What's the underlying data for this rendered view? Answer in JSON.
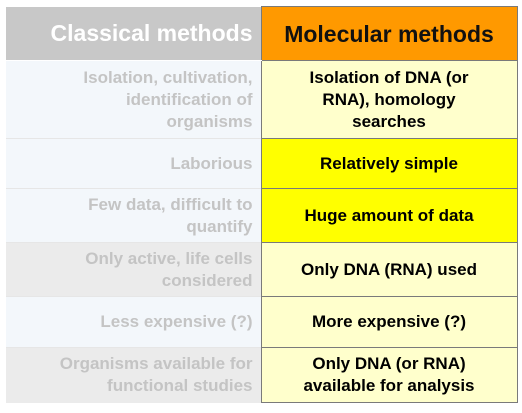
{
  "header": {
    "left": "Classical methods",
    "right": "Molecular methods"
  },
  "colors": {
    "header_left_bg": "#c8c8c8",
    "header_right_bg": "#ff9900",
    "highlight_yellow": "#ffff00",
    "pale_yellow": "#ffffcc",
    "faded_text": "#c4c4c4"
  },
  "rows": [
    {
      "left": "Isolation, cultivation,\nidentification of\norganisms",
      "right": "Isolation of DNA (or\nRNA), homology\nsearches"
    },
    {
      "left": "Laborious",
      "right": "Relatively simple"
    },
    {
      "left": "Few data, difficult to\nquantify",
      "right": "Huge amount of data"
    },
    {
      "left": "Only active, life cells\nconsidered",
      "right": "Only DNA (RNA) used"
    },
    {
      "left": "Less expensive (?)",
      "right": "More expensive (?)"
    },
    {
      "left": "Organisms available for\nfunctional studies",
      "right": "Only DNA (or RNA)\navailable for analysis"
    }
  ]
}
